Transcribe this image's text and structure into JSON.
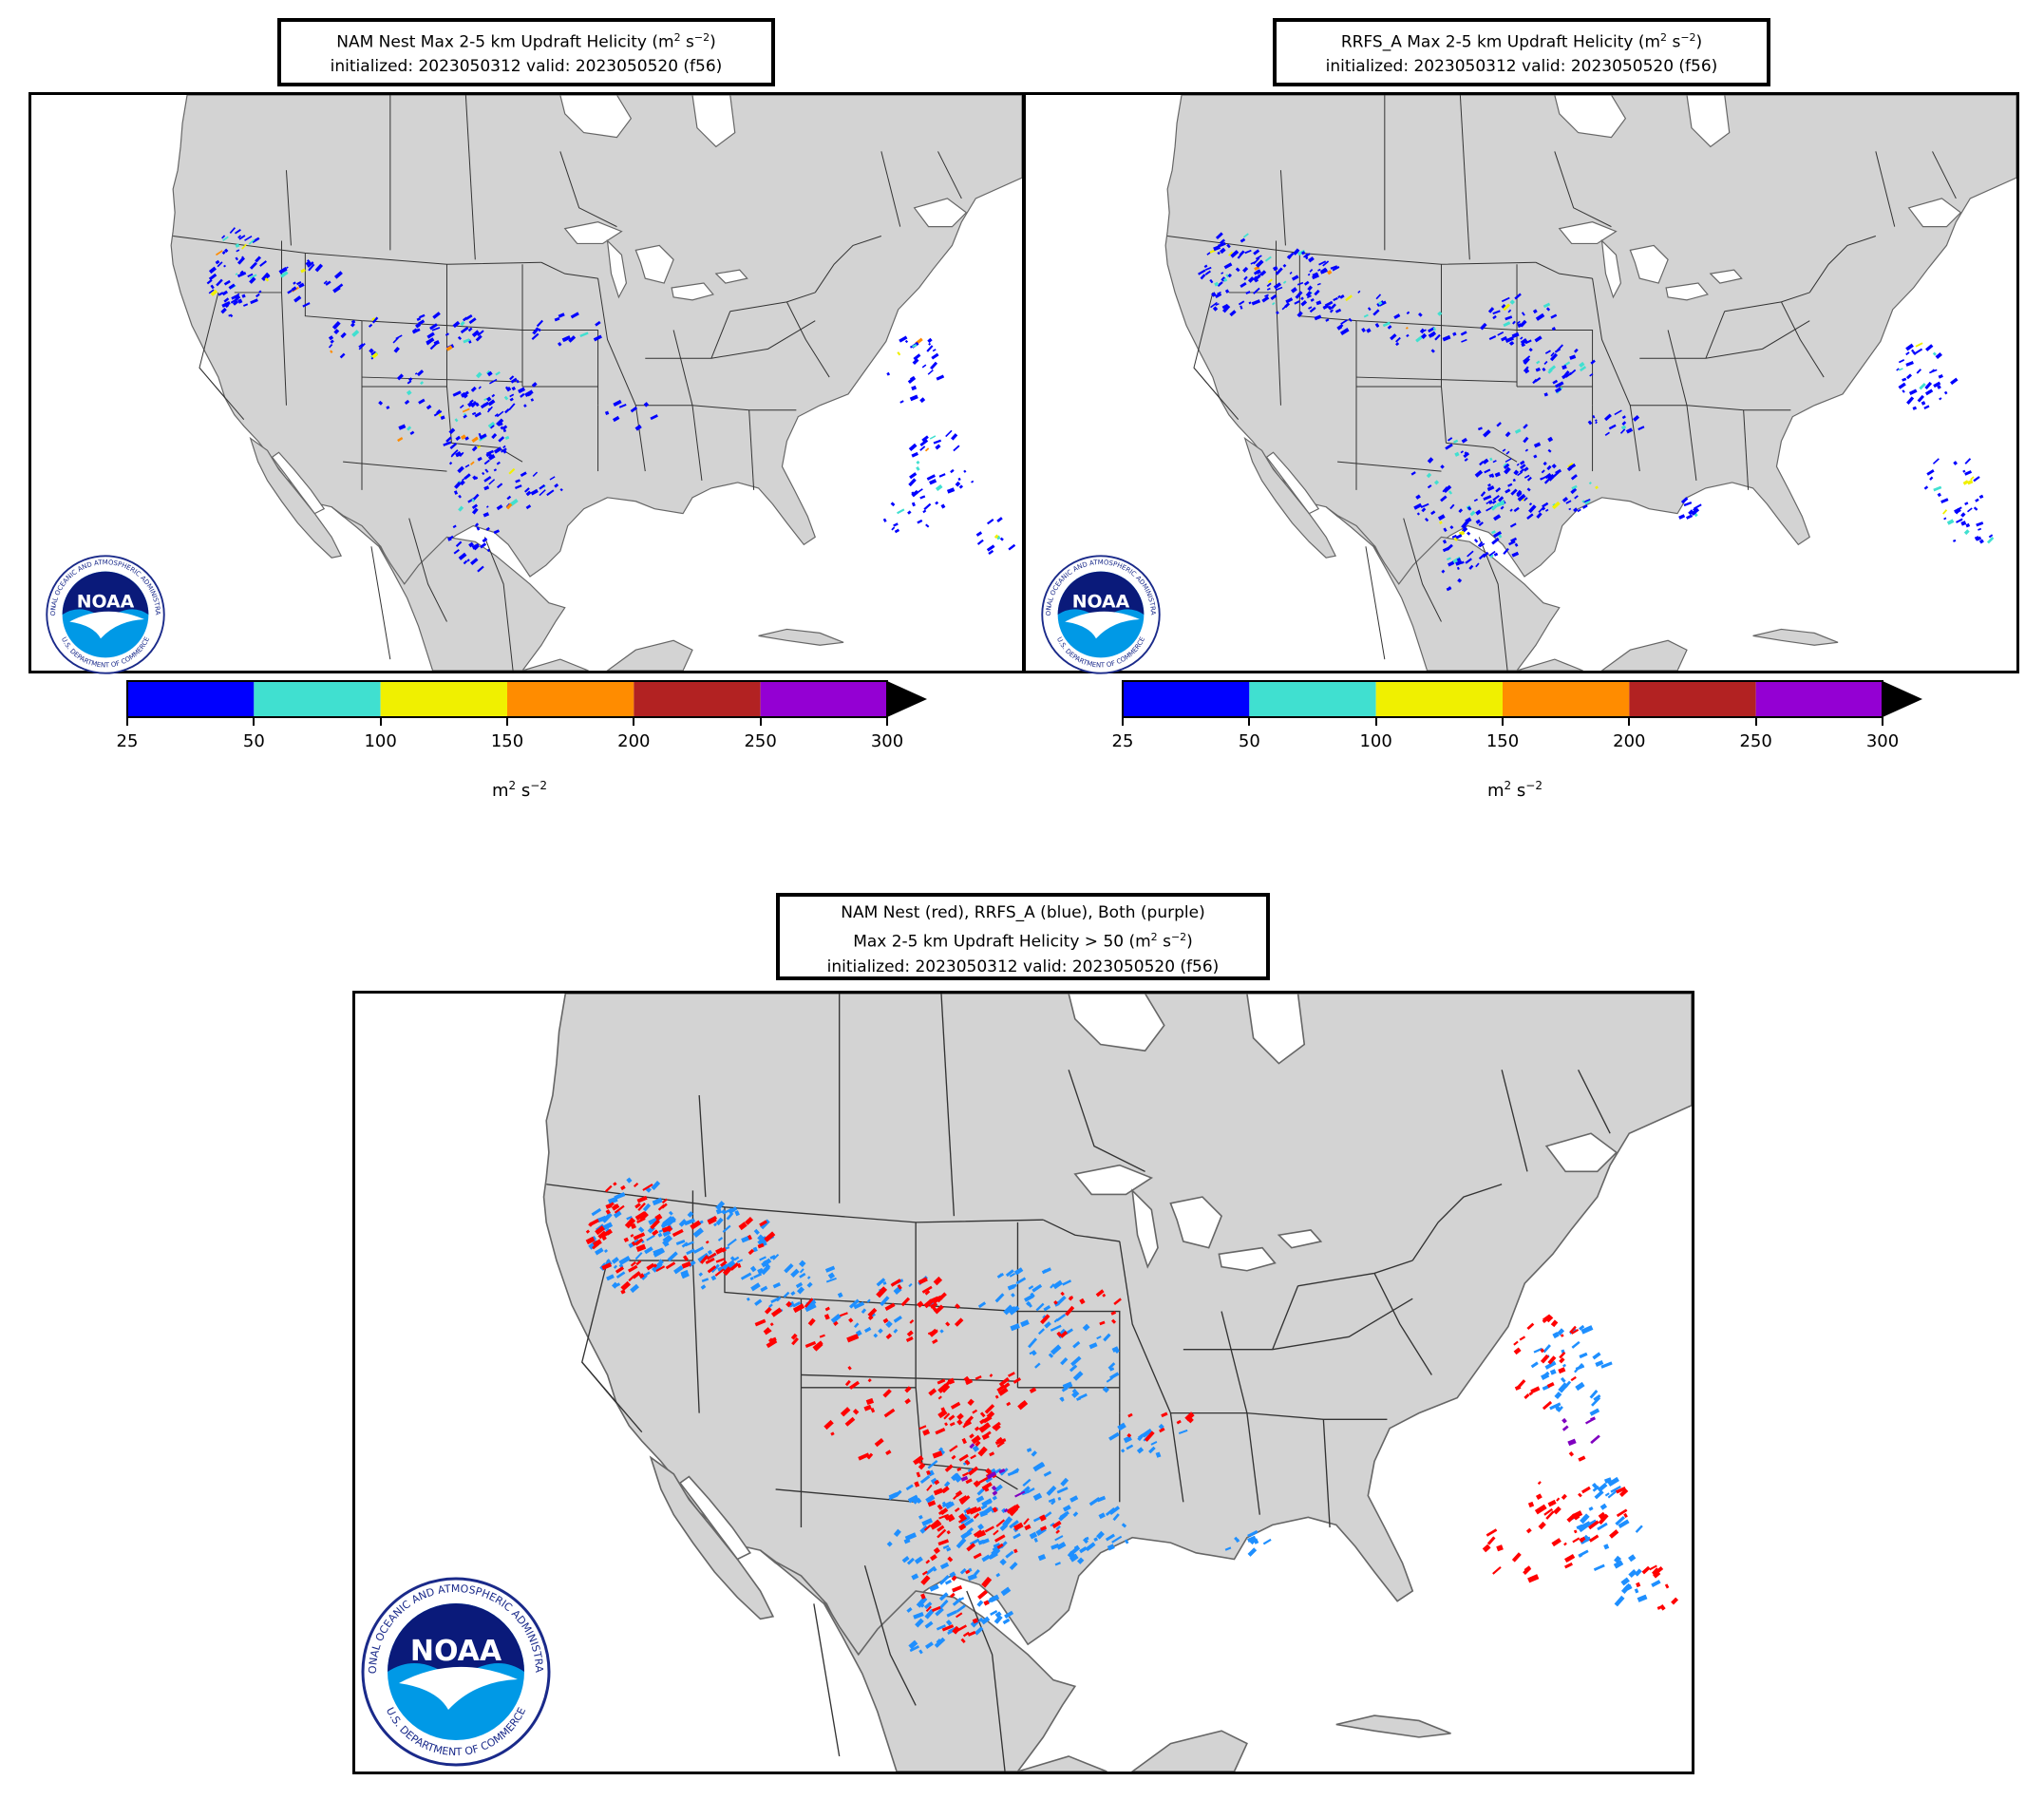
{
  "panels": [
    {
      "id": "nam",
      "title_line1": "NAM Nest Max 2-5 km Updraft Helicity (m",
      "title_sup1": "2",
      "title_mid": " s",
      "title_sup2": "−2",
      "title_end": ")",
      "title_line2": "initialized: 2023050312 valid: 2023050520 (f56)"
    },
    {
      "id": "rrfs",
      "title_line1": "RRFS_A Max 2-5 km Updraft Helicity (m",
      "title_sup1": "2",
      "title_mid": " s",
      "title_sup2": "−2",
      "title_end": ")",
      "title_line2": "initialized: 2023050312 valid: 2023050520 (f56)"
    }
  ],
  "comparison": {
    "title_line1": "NAM Nest (red), RRFS_A (blue), Both (purple)",
    "title_line2a": "Max 2-5 km Updraft Helicity > 50 (m",
    "title_sup1": "2",
    "title_mid": " s",
    "title_sup2": "−2",
    "title_end": ")",
    "title_line3": "initialized: 2023050312 valid: 2023050520 (f56)",
    "colors": {
      "nam": "#ff0000",
      "rrfs": "#1e8fff",
      "both": "#8000c0"
    }
  },
  "colorbar": {
    "ticks": [
      "25",
      "50",
      "100",
      "150",
      "200",
      "250",
      "300"
    ],
    "bins": [
      {
        "from": 25,
        "to": 50,
        "color": "#0000ff"
      },
      {
        "from": 50,
        "to": 100,
        "color": "#40e0d0"
      },
      {
        "from": 100,
        "to": 150,
        "color": "#f0f000"
      },
      {
        "from": 150,
        "to": 200,
        "color": "#ff8c00"
      },
      {
        "from": 200,
        "to": 250,
        "color": "#b22222"
      },
      {
        "from": 250,
        "to": 300,
        "color": "#9400d3"
      }
    ],
    "extend_color": "#000000",
    "unit_base": "m",
    "unit_sup1": "2",
    "unit_mid": " s",
    "unit_sup2": "−2"
  },
  "map": {
    "land_color": "#d3d3d3",
    "water_color": "#ffffff",
    "border_color": "#333333"
  },
  "logo": {
    "text": "NOAA",
    "ring_text_top": "NATIONAL OCEANIC AND ATMOSPHERIC ADMINISTRATION",
    "ring_text_bottom": "U.S. DEPARTMENT OF COMMERCE"
  }
}
